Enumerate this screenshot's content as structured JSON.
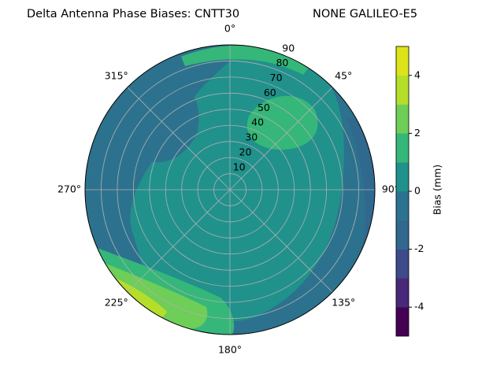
{
  "chart_data": {
    "type": "polar_contour",
    "title": "Delta Antenna Phase Biases: CNTT30",
    "subtitle": "NONE GALILEO-E5",
    "theta_zero": "N",
    "theta_direction": "clockwise",
    "thetaticks": [
      {
        "value": 0,
        "label": "0°"
      },
      {
        "value": 45,
        "label": "45°"
      },
      {
        "value": 90,
        "label": "90°"
      },
      {
        "value": 135,
        "label": "135°"
      },
      {
        "value": 180,
        "label": "180°"
      },
      {
        "value": 225,
        "label": "225°"
      },
      {
        "value": 270,
        "label": "270°"
      },
      {
        "value": 315,
        "label": "315°"
      }
    ],
    "rlim": [
      0,
      90
    ],
    "rticks": [
      10,
      20,
      30,
      40,
      50,
      60,
      70,
      80,
      90
    ],
    "grid": true,
    "levels": [
      -5,
      -4,
      -3,
      -2,
      -1,
      0,
      1,
      2,
      3,
      4,
      5
    ],
    "colors": [
      "#440154",
      "#482878",
      "#3e4a89",
      "#31688e",
      "#2c728e",
      "#21918c",
      "#35b779",
      "#6ece58",
      "#b5de2b",
      "#dde318"
    ],
    "colorbar": {
      "label": "Bias (mm)",
      "ylim": [
        -5,
        5
      ],
      "yticks": [
        -4,
        -2,
        0,
        2,
        4
      ]
    }
  }
}
